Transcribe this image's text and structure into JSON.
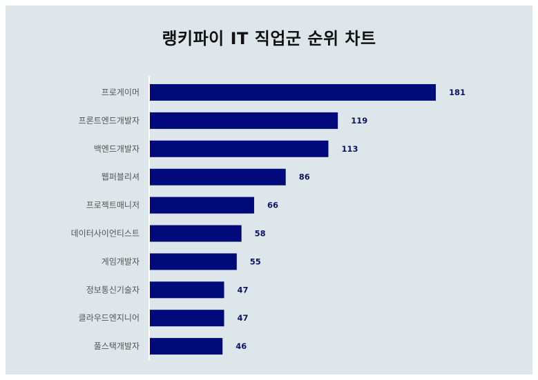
{
  "chart_data": {
    "type": "bar",
    "orientation": "horizontal",
    "title": "랭키파이 IT 직업군 순위 차트",
    "categories": [
      "프로게이머",
      "프론트엔드개발자",
      "백엔드개발자",
      "웹퍼블리셔",
      "프로젝트매니저",
      "데이터사이언티스트",
      "게임개발자",
      "정보통신기술자",
      "클라우드엔지니어",
      "풀스택개발자"
    ],
    "values": [
      181,
      119,
      113,
      86,
      66,
      58,
      55,
      47,
      47,
      46
    ],
    "xlim": [
      0,
      200
    ],
    "grid": false,
    "legend": "none",
    "colors": {
      "bar": "#000a7a",
      "value_label": "#0d1466",
      "category_label": "#555555",
      "background": "#dde6ea"
    }
  }
}
